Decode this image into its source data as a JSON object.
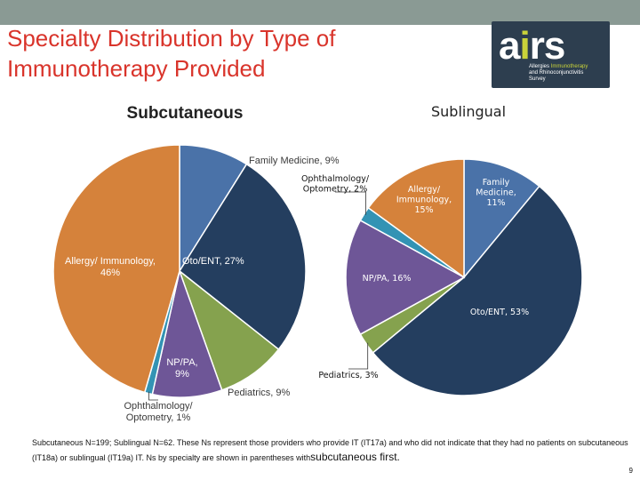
{
  "slide": {
    "title": "Specialty Distribution by Type of Immunotherapy Provided",
    "footnote_main": "Subcutaneous N=199; Sublingual N=62.  These Ns represent those providers who provide IT (IT17a) and who did not indicate that they had no patients on subcutaneous (IT18a) or sublingual (IT19a) IT.   Ns by specialty are shown in parentheses with",
    "footnote_tail": "subcutaneous first.",
    "page_number": "9"
  },
  "logo": {
    "word_a": "a",
    "word_i": "i",
    "word_rs": "rs",
    "sub_white": "Allergies",
    "sub_green": "Immunotherapy",
    "sub_line2": "and Rhinoconjunctivitis",
    "sub_line3": "Survey"
  },
  "chart_data": [
    {
      "type": "pie",
      "title": "Subcutaneous",
      "slices": [
        {
          "label": "Family Medicine, 9%",
          "value": 9,
          "color": "#4a72a8",
          "label_color": "#3a3a3a"
        },
        {
          "label": "Oto/ENT, 27%",
          "value": 27,
          "color": "#243e5f",
          "label_color": "#ffffff"
        },
        {
          "label": "Pediatrics, 9%",
          "value": 9,
          "color": "#85a24e",
          "label_color": "#3a3a3a"
        },
        {
          "label": "NP/PA, 9%",
          "value": 9,
          "color": "#6e5697",
          "label_color": "#ffffff"
        },
        {
          "label": "Ophthalmology/ Optometry, 1%",
          "value": 1,
          "color": "#3393b4",
          "label_color": "#3a3a3a"
        },
        {
          "label": "Allergy/ Immunology, 46%",
          "value": 46,
          "color": "#d5823b",
          "label_color": "#ffffff"
        }
      ]
    },
    {
      "type": "pie",
      "title": "Sublingual",
      "slices": [
        {
          "label": "Family Medicine, 11%",
          "value": 11,
          "color": "#4a72a8",
          "label_color": "#ffffff"
        },
        {
          "label": "Oto/ENT, 53%",
          "value": 53,
          "color": "#243e5f",
          "label_color": "#ffffff"
        },
        {
          "label": "Pediatrics, 3%",
          "value": 3,
          "color": "#85a24e",
          "label_color": "#111111"
        },
        {
          "label": "NP/PA, 16%",
          "value": 16,
          "color": "#6e5697",
          "label_color": "#ffffff"
        },
        {
          "label": "Ophthalmology/ Optometry, 2%",
          "value": 2,
          "color": "#3393b4",
          "label_color": "#111111"
        },
        {
          "label": "Allergy/ Immunology, 15%",
          "value": 15,
          "color": "#d5823b",
          "label_color": "#ffffff"
        }
      ]
    }
  ]
}
